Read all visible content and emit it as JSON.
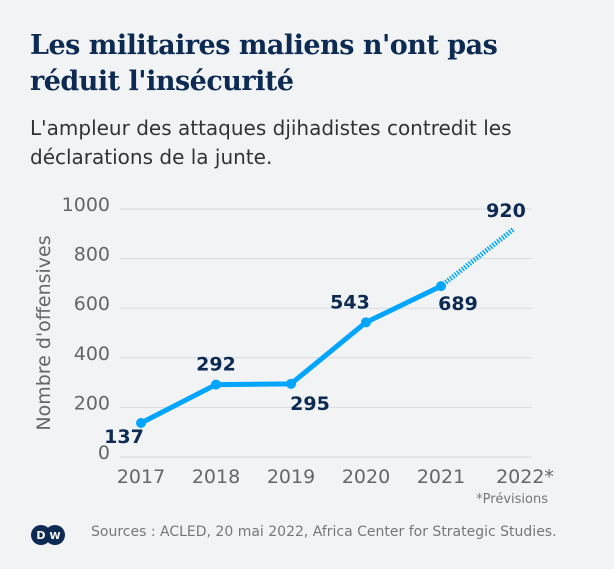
{
  "title": "Les militaires maliens n'ont pas réduit l'insécurité",
  "subtitle": "L'ampleur des attaques djihadistes contredit les déclarations de la junte.",
  "footnote": "*Prévisions",
  "source": "Sources : ACLED, 20 mai 2022, Africa Center for Strategic Studies.",
  "logo": "DW",
  "chart_data": {
    "type": "line",
    "ylabel": "Nombre d'offensives",
    "ylim": [
      0,
      1000
    ],
    "yticks": [
      0,
      200,
      400,
      600,
      800,
      1000
    ],
    "categories": [
      "2017",
      "2018",
      "2019",
      "2020",
      "2021",
      "2022*"
    ],
    "values": [
      137,
      292,
      295,
      543,
      689,
      920
    ],
    "forecast_categories": [
      "2022*"
    ],
    "grid": true,
    "colors": {
      "line": "#00a5ff",
      "label": "#0c2a52",
      "axis": "#666"
    }
  }
}
